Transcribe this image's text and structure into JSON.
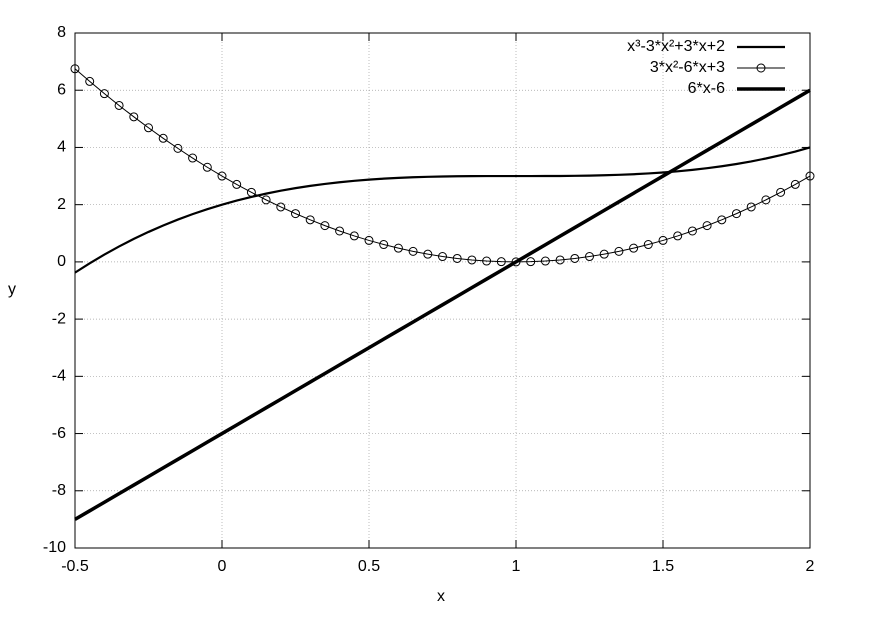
{
  "chart_data": {
    "type": "line",
    "x_label": "x",
    "y_label": "y",
    "x": [
      -0.5,
      -0.45,
      -0.4,
      -0.35,
      -0.3,
      -0.25,
      -0.2,
      -0.15,
      -0.1,
      -0.05,
      0,
      0.05,
      0.1,
      0.15,
      0.2,
      0.25,
      0.3,
      0.35,
      0.4,
      0.45,
      0.5,
      0.55,
      0.6,
      0.65,
      0.7,
      0.75,
      0.8,
      0.85,
      0.9,
      0.95,
      1,
      1.05,
      1.1,
      1.15,
      1.2,
      1.25,
      1.3,
      1.35,
      1.4,
      1.45,
      1.5,
      1.55,
      1.6,
      1.65,
      1.7,
      1.75,
      1.8,
      1.85,
      1.9,
      1.95,
      2
    ],
    "series": [
      {
        "name": "x³-3*x²+3*x+2",
        "color": "#000000",
        "line_width": 2.2,
        "marker": false,
        "values": [
          -0.375,
          -0.049,
          0.256,
          0.54,
          0.803,
          1.047,
          1.272,
          1.479,
          1.669,
          1.842,
          2,
          2.143,
          2.271,
          2.386,
          2.488,
          2.578,
          2.657,
          2.725,
          2.784,
          2.834,
          2.875,
          2.909,
          2.936,
          2.957,
          2.973,
          2.984,
          2.992,
          2.997,
          2.999,
          3,
          3,
          3,
          3.001,
          3.003,
          3.008,
          3.016,
          3.027,
          3.043,
          3.064,
          3.091,
          3.125,
          3.166,
          3.216,
          3.275,
          3.343,
          3.422,
          3.512,
          3.614,
          3.729,
          3.857,
          4
        ]
      },
      {
        "name": "3*x²-6*x+3",
        "color": "#000000",
        "line_width": 1,
        "marker": true,
        "values": [
          6.75,
          6.3075,
          5.88,
          5.4675,
          5.07,
          4.6875,
          4.32,
          3.9675,
          3.63,
          3.3075,
          3,
          2.7075,
          2.43,
          2.1675,
          1.92,
          1.6875,
          1.47,
          1.2675,
          1.08,
          0.9075,
          0.75,
          0.6075,
          0.48,
          0.3675,
          0.27,
          0.1875,
          0.12,
          0.0675,
          0.03,
          0.0075,
          0,
          0.0075,
          0.03,
          0.0675,
          0.12,
          0.1875,
          0.27,
          0.3675,
          0.48,
          0.6075,
          0.75,
          0.9075,
          1.08,
          1.2675,
          1.47,
          1.6875,
          1.92,
          2.1675,
          2.43,
          2.7075,
          3
        ]
      },
      {
        "name": "6*x-6",
        "color": "#000000",
        "line_width": 3.5,
        "marker": false,
        "values": [
          -9,
          -8.7,
          -8.4,
          -8.1,
          -7.8,
          -7.5,
          -7.2,
          -6.9,
          -6.6,
          -6.3,
          -6,
          -5.7,
          -5.4,
          -5.1,
          -4.8,
          -4.5,
          -4.2,
          -3.9,
          -3.6,
          -3.3,
          -3,
          -2.7,
          -2.4,
          -2.1,
          -1.8,
          -1.5,
          -1.2,
          -0.9,
          -0.6,
          -0.3,
          0,
          0.3,
          0.6,
          0.9,
          1.2,
          1.5,
          1.8,
          2.1,
          2.4,
          2.7,
          3,
          3.3,
          3.6,
          3.9,
          4.2,
          4.5,
          4.8,
          5.1,
          5.4,
          5.7,
          6
        ]
      }
    ],
    "xlim": [
      -0.5,
      2
    ],
    "xticks": [
      -0.5,
      0,
      0.5,
      1,
      1.5,
      2
    ],
    "ylim": [
      -10,
      8
    ],
    "yticks": [
      -10,
      -8,
      -6,
      -4,
      -2,
      0,
      2,
      4,
      6,
      8
    ],
    "grid": true,
    "legend": "top-right"
  }
}
